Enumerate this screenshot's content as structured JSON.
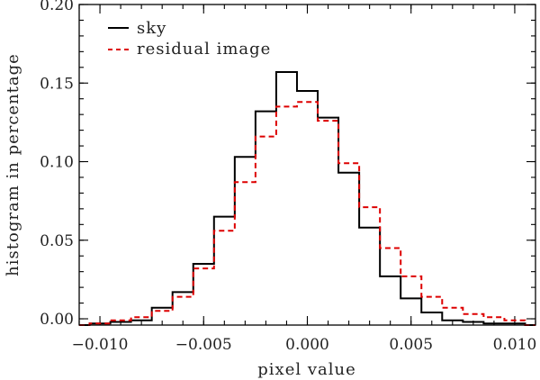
{
  "chart_data": {
    "type": "histogram-step",
    "title": "",
    "xlabel": "pixel value",
    "ylabel": "histogram in percentage",
    "xlim": [
      -0.011,
      0.011
    ],
    "ylim": [
      -0.004,
      0.2
    ],
    "xticks": [
      -0.01,
      -0.005,
      0.0,
      0.005,
      0.01
    ],
    "xtick_labels": [
      "−0.010",
      "−0.005",
      "0.000",
      "0.005",
      "0.010"
    ],
    "yticks": [
      0.0,
      0.05,
      0.1,
      0.15,
      0.2
    ],
    "ytick_labels": [
      "0.00",
      "0.05",
      "0.10",
      "0.15",
      "0.20"
    ],
    "bin_edges": [
      -0.0115,
      -0.0105,
      -0.0095,
      -0.0085,
      -0.0075,
      -0.0065,
      -0.0055,
      -0.0045,
      -0.0035,
      -0.0025,
      -0.0015,
      -0.0005,
      0.0005,
      0.0015,
      0.0025,
      0.0035,
      0.0045,
      0.0055,
      0.0065,
      0.0075,
      0.0085,
      0.0095,
      0.0105,
      0.0115
    ],
    "series": [
      {
        "name": "sky",
        "color": "#000000",
        "dash": "solid",
        "values": [
          -0.004,
          -0.003,
          -0.002,
          -0.001,
          0.007,
          0.017,
          0.035,
          0.065,
          0.103,
          0.132,
          0.157,
          0.145,
          0.128,
          0.093,
          0.058,
          0.027,
          0.013,
          0.004,
          -0.001,
          -0.002,
          -0.003,
          -0.003,
          -0.004
        ]
      },
      {
        "name": "residual image",
        "color": "#dd0000",
        "dash": "dashed",
        "values": [
          -0.004,
          -0.003,
          -0.001,
          0.001,
          0.005,
          0.014,
          0.032,
          0.056,
          0.087,
          0.116,
          0.135,
          0.138,
          0.126,
          0.099,
          0.071,
          0.045,
          0.027,
          0.014,
          0.007,
          0.003,
          0.001,
          -0.001,
          -0.004
        ]
      }
    ],
    "legend_position": "top-left"
  }
}
